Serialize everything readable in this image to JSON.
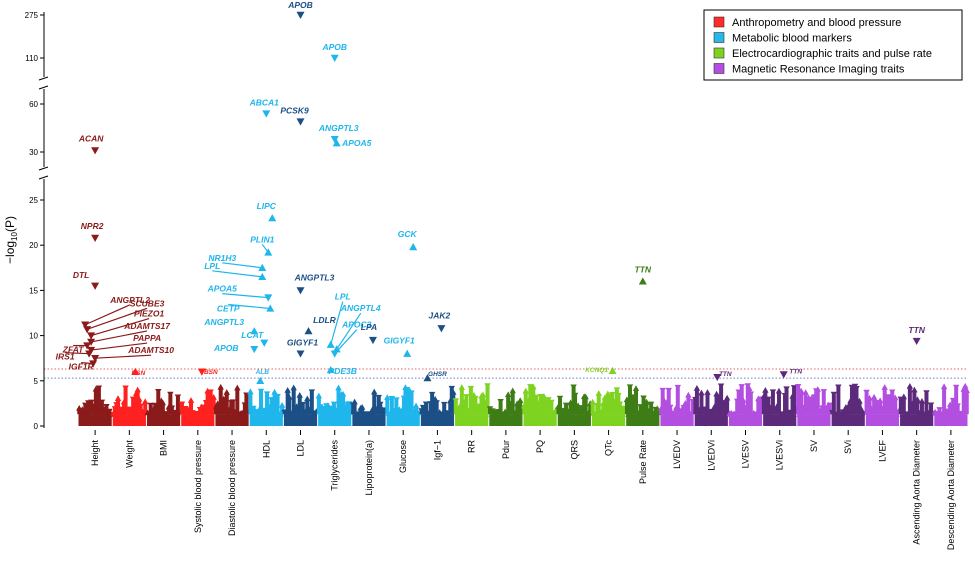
{
  "chart_data": {
    "type": "scatter",
    "subtype": "manhattan",
    "ylabel_parts": [
      "−log",
      "10",
      "(P)"
    ],
    "y_segments": [
      {
        "ticks": [
          0,
          5,
          10,
          15,
          20,
          25
        ]
      },
      {
        "ticks": [
          30,
          60
        ]
      },
      {
        "ticks": [
          110,
          275
        ]
      }
    ],
    "thresholds": [
      {
        "name": "suggestive",
        "value": 5.3,
        "color": "#6b7fd6"
      },
      {
        "name": "significant",
        "value": 6.3,
        "color": "#e06060"
      }
    ],
    "legend": [
      {
        "label": "Anthropometry and blood pressure",
        "color": "#ff2a2a"
      },
      {
        "label": "Metabolic blood markers",
        "color": "#27b8e8"
      },
      {
        "label": "Electrocardiographic traits and pulse rate",
        "color": "#7ed321"
      },
      {
        "label": "Magnetic Resonance Imaging traits",
        "color": "#b24fe0"
      }
    ],
    "categories": [
      {
        "name": "Height",
        "color": "#8b1a1a"
      },
      {
        "name": "Weight",
        "color": "#ff2020"
      },
      {
        "name": "BMI",
        "color": "#8b1a1a"
      },
      {
        "name": "Systolic blood pressure",
        "color": "#ff2020"
      },
      {
        "name": "Diastolic blood pressure",
        "color": "#8b1a1a"
      },
      {
        "name": "HDL",
        "color": "#1fb6ec"
      },
      {
        "name": "LDL",
        "color": "#1c4f86"
      },
      {
        "name": "Triglycerides",
        "color": "#1fb6ec"
      },
      {
        "name": "Lipoprotein(a)",
        "color": "#1c4f86"
      },
      {
        "name": "Glucose",
        "color": "#1fb6ec"
      },
      {
        "name": "Igf−1",
        "color": "#1c4f86"
      },
      {
        "name": "RR",
        "color": "#7ed321"
      },
      {
        "name": "Pdur",
        "color": "#3e7d16"
      },
      {
        "name": "PQ",
        "color": "#7ed321"
      },
      {
        "name": "QRS",
        "color": "#3e7d16"
      },
      {
        "name": "QTc",
        "color": "#7ed321"
      },
      {
        "name": "Pulse Rate",
        "color": "#3e7d16"
      },
      {
        "name": "LVEDV",
        "color": "#b24fe0"
      },
      {
        "name": "LVEDVi",
        "color": "#5c2a7a"
      },
      {
        "name": "LVESV",
        "color": "#b24fe0"
      },
      {
        "name": "LVESVi",
        "color": "#5c2a7a"
      },
      {
        "name": "SV",
        "color": "#b24fe0"
      },
      {
        "name": "SVi",
        "color": "#5c2a7a"
      },
      {
        "name": "LVEF",
        "color": "#b24fe0"
      },
      {
        "name": "Ascending Aorta Diameter",
        "color": "#5c2a7a"
      },
      {
        "name": "Descending Aorta Diameter",
        "color": "#b24fe0"
      }
    ],
    "points": [
      {
        "gene": "ACAN",
        "cat": 0,
        "value": 31,
        "dir": "down"
      },
      {
        "gene": "NPR2",
        "cat": 0,
        "value": 20.8,
        "dir": "down"
      },
      {
        "gene": "DTL",
        "cat": 0,
        "value": 15.5,
        "dir": "down"
      },
      {
        "gene": "ANGPTL2",
        "cat": 0,
        "value": 11.2,
        "dir": "down"
      },
      {
        "gene": "SCUBE3",
        "cat": 0,
        "value": 10.7,
        "dir": "down"
      },
      {
        "gene": "PIEZO1",
        "cat": 0,
        "value": 10.0,
        "dir": "down"
      },
      {
        "gene": "ADAMTS17",
        "cat": 0,
        "value": 9.3,
        "dir": "down"
      },
      {
        "gene": "ZFAT",
        "cat": 0,
        "value": 8.9,
        "dir": "down"
      },
      {
        "gene": "PAPPA",
        "cat": 0,
        "value": 8.4,
        "dir": "down"
      },
      {
        "gene": "IRS1",
        "cat": 0,
        "value": 8.0,
        "dir": "down"
      },
      {
        "gene": "ADAMTS10",
        "cat": 0,
        "value": 7.5,
        "dir": "down"
      },
      {
        "gene": "IGF1R",
        "cat": 0,
        "value": 6.9,
        "dir": "down"
      },
      {
        "gene": "BSN",
        "cat": 1,
        "value": 6.0,
        "dir": "up"
      },
      {
        "gene": "BSN",
        "cat": 3,
        "value": 6.0,
        "dir": "down"
      },
      {
        "gene": "APOB",
        "cat": 6,
        "value": 275,
        "dir": "down"
      },
      {
        "gene": "APOB",
        "cat": 7,
        "value": 110,
        "dir": "down"
      },
      {
        "gene": "ABCA1",
        "cat": 5,
        "value": 54,
        "dir": "down"
      },
      {
        "gene": "PCSK9",
        "cat": 6,
        "value": 49,
        "dir": "down"
      },
      {
        "gene": "ANGPTL3",
        "cat": 7,
        "value": 38,
        "dir": "down"
      },
      {
        "gene": "APOA5",
        "cat": 7,
        "value": 35.5,
        "dir": "up"
      },
      {
        "gene": "LIPC",
        "cat": 5,
        "value": 23,
        "dir": "up"
      },
      {
        "gene": "PLIN1",
        "cat": 5,
        "value": 19.2,
        "dir": "up"
      },
      {
        "gene": "NR1H3",
        "cat": 5,
        "value": 17.5,
        "dir": "up"
      },
      {
        "gene": "LPL",
        "cat": 5,
        "value": 16.5,
        "dir": "up"
      },
      {
        "gene": "ANGPTL3",
        "cat": 6,
        "value": 15.0,
        "dir": "down"
      },
      {
        "gene": "APOA5",
        "cat": 5,
        "value": 14.2,
        "dir": "down"
      },
      {
        "gene": "CETP",
        "cat": 5,
        "value": 13.0,
        "dir": "up"
      },
      {
        "gene": "LDLR",
        "cat": 6,
        "value": 10.5,
        "dir": "up"
      },
      {
        "gene": "ANGPTL3",
        "cat": 5,
        "value": 10.5,
        "dir": "up"
      },
      {
        "gene": "LCAT",
        "cat": 5,
        "value": 9.2,
        "dir": "down"
      },
      {
        "gene": "GIGYF1",
        "cat": 6,
        "value": 8.0,
        "dir": "down"
      },
      {
        "gene": "APOB",
        "cat": 5,
        "value": 8.5,
        "dir": "down"
      },
      {
        "gene": "ALB",
        "cat": 5,
        "value": 5.0,
        "dir": "up"
      },
      {
        "gene": "LPL",
        "cat": 7,
        "value": 9.0,
        "dir": "up"
      },
      {
        "gene": "ANGPTL4",
        "cat": 7,
        "value": 8.5,
        "dir": "up"
      },
      {
        "gene": "APOC3",
        "cat": 7,
        "value": 8.0,
        "dir": "down"
      },
      {
        "gene": "PDE3B",
        "cat": 7,
        "value": 6.2,
        "dir": "up"
      },
      {
        "gene": "LPA",
        "cat": 8,
        "value": 9.5,
        "dir": "down"
      },
      {
        "gene": "GCK",
        "cat": 9,
        "value": 19.8,
        "dir": "up"
      },
      {
        "gene": "GIGYF1",
        "cat": 9,
        "value": 8.0,
        "dir": "up"
      },
      {
        "gene": "JAK2",
        "cat": 10,
        "value": 10.8,
        "dir": "down"
      },
      {
        "gene": "GHSR",
        "cat": 10,
        "value": 5.3,
        "dir": "up"
      },
      {
        "gene": "KCNQ1",
        "cat": 15,
        "value": 6.1,
        "dir": "up"
      },
      {
        "gene": "TTN",
        "cat": 16,
        "value": 16.0,
        "dir": "up"
      },
      {
        "gene": "TTN",
        "cat": 18,
        "value": 5.4,
        "dir": "down"
      },
      {
        "gene": "TTN",
        "cat": 20,
        "value": 5.7,
        "dir": "down"
      },
      {
        "gene": "TTN",
        "cat": 24,
        "value": 9.4,
        "dir": "down"
      }
    ]
  }
}
